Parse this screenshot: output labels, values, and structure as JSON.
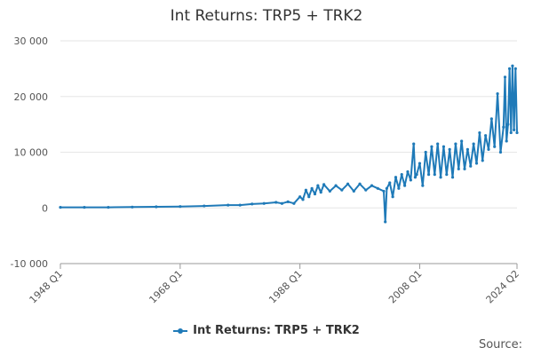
{
  "chart_data": {
    "type": "line",
    "title": "Int Returns: TRP5 + TRK2",
    "xlabel": "",
    "ylabel": "",
    "ylim": [
      -10000,
      30000
    ],
    "yticks": [
      -10000,
      0,
      10000,
      20000,
      30000
    ],
    "ytick_labels": [
      "-10 000",
      "0",
      "10 000",
      "20 000",
      "30 000"
    ],
    "xrange": [
      1948.0,
      2024.25
    ],
    "xticks": [
      1948.0,
      1968.0,
      1988.0,
      2008.0,
      2024.25
    ],
    "xtick_labels": [
      "1948 Q1",
      "1968 Q1",
      "1988 Q1",
      "2008 Q1",
      "2024 Q2"
    ],
    "grid": "horizontal",
    "legend": "bottom-center",
    "color": "#1f7ab8",
    "series": [
      {
        "name": "Int Returns: TRP5 + TRK2",
        "x": [
          1948.0,
          1952.0,
          1956.0,
          1960.0,
          1964.0,
          1968.0,
          1972.0,
          1976.0,
          1978.0,
          1980.0,
          1982.0,
          1984.0,
          1985.0,
          1986.0,
          1987.0,
          1988.0,
          1988.5,
          1989.0,
          1989.5,
          1990.0,
          1990.5,
          1991.0,
          1991.5,
          1992.0,
          1993.0,
          1994.0,
          1995.0,
          1996.0,
          1997.0,
          1998.0,
          1999.0,
          2000.0,
          2001.0,
          2002.0,
          2002.25,
          2002.5,
          2003.0,
          2003.5,
          2004.0,
          2004.5,
          2005.0,
          2005.5,
          2006.0,
          2006.5,
          2007.0,
          2007.25,
          2007.5,
          2008.0,
          2008.5,
          2009.0,
          2009.5,
          2010.0,
          2010.5,
          2011.0,
          2011.5,
          2012.0,
          2012.5,
          2013.0,
          2013.5,
          2014.0,
          2014.5,
          2015.0,
          2015.5,
          2016.0,
          2016.5,
          2017.0,
          2017.5,
          2018.0,
          2018.5,
          2019.0,
          2019.5,
          2020.0,
          2020.5,
          2021.0,
          2021.5,
          2022.0,
          2022.25,
          2022.5,
          2022.75,
          2023.0,
          2023.25,
          2023.5,
          2023.75,
          2024.0,
          2024.25
        ],
        "values": [
          100,
          100,
          100,
          150,
          200,
          250,
          350,
          500,
          500,
          700,
          800,
          1000,
          800,
          1100,
          800,
          2000,
          1500,
          3200,
          2000,
          3500,
          2500,
          4000,
          2800,
          4200,
          3000,
          4000,
          3200,
          4300,
          3000,
          4300,
          3200,
          4000,
          3500,
          3000,
          -2500,
          3500,
          4500,
          2000,
          5500,
          3500,
          6000,
          4000,
          6500,
          5000,
          11500,
          5500,
          6000,
          8000,
          4000,
          10000,
          6000,
          11000,
          6000,
          11500,
          5500,
          11000,
          6000,
          10500,
          5500,
          11500,
          7000,
          12000,
          7000,
          10500,
          7500,
          11500,
          8000,
          13500,
          8500,
          13000,
          10500,
          16000,
          11000,
          20500,
          10000,
          14500,
          23500,
          12000,
          15000,
          25000,
          13500,
          25500,
          14000,
          25000,
          13500
        ]
      }
    ]
  },
  "legend": {
    "label": "Int Returns: TRP5 + TRK2"
  },
  "source": {
    "label": "Source:"
  }
}
